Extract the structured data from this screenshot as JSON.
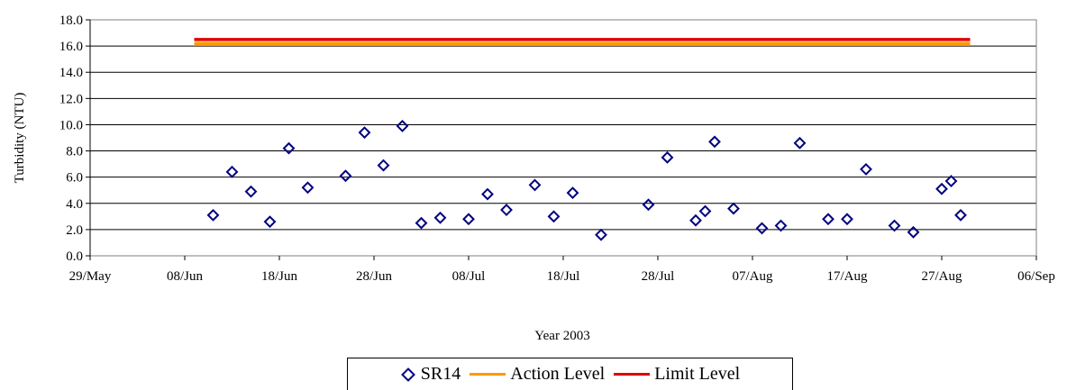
{
  "chart_data": {
    "type": "scatter",
    "xlabel": "Year 2003",
    "ylabel": "Turbidity (NTU)",
    "ylim": [
      0,
      18
    ],
    "y_ticks": [
      "0.0",
      "2.0",
      "4.0",
      "6.0",
      "8.0",
      "10.0",
      "12.0",
      "14.0",
      "16.0",
      "18.0"
    ],
    "x_range_days": [
      0,
      100
    ],
    "x_tick_labels": [
      "29/May",
      "08/Jun",
      "18/Jun",
      "28/Jun",
      "08/Jul",
      "18/Jul",
      "28/Jul",
      "07/Aug",
      "17/Aug",
      "27/Aug",
      "06/Sep"
    ],
    "grid": true,
    "legend_position": "bottom",
    "series": [
      {
        "name": "SR14",
        "kind": "points",
        "color": "#000080",
        "points": [
          {
            "x": "11/Jun",
            "y": 3.1
          },
          {
            "x": "13/Jun",
            "y": 6.4
          },
          {
            "x": "15/Jun",
            "y": 4.9
          },
          {
            "x": "17/Jun",
            "y": 2.6
          },
          {
            "x": "19/Jun",
            "y": 8.2
          },
          {
            "x": "21/Jun",
            "y": 5.2
          },
          {
            "x": "25/Jun",
            "y": 6.1
          },
          {
            "x": "27/Jun",
            "y": 9.4
          },
          {
            "x": "29/Jun",
            "y": 6.9
          },
          {
            "x": "01/Jul",
            "y": 9.9
          },
          {
            "x": "03/Jul",
            "y": 2.5
          },
          {
            "x": "05/Jul",
            "y": 2.9
          },
          {
            "x": "08/Jul",
            "y": 2.8
          },
          {
            "x": "10/Jul",
            "y": 4.7
          },
          {
            "x": "12/Jul",
            "y": 3.5
          },
          {
            "x": "15/Jul",
            "y": 5.4
          },
          {
            "x": "17/Jul",
            "y": 3.0
          },
          {
            "x": "19/Jul",
            "y": 4.8
          },
          {
            "x": "22/Jul",
            "y": 1.6
          },
          {
            "x": "27/Jul",
            "y": 3.9
          },
          {
            "x": "29/Jul",
            "y": 7.5
          },
          {
            "x": "01/Aug",
            "y": 2.7
          },
          {
            "x": "02/Aug",
            "y": 3.4
          },
          {
            "x": "03/Aug",
            "y": 8.7
          },
          {
            "x": "05/Aug",
            "y": 3.6
          },
          {
            "x": "08/Aug",
            "y": 2.1
          },
          {
            "x": "10/Aug",
            "y": 2.3
          },
          {
            "x": "12/Aug",
            "y": 8.6
          },
          {
            "x": "15/Aug",
            "y": 2.8
          },
          {
            "x": "17/Aug",
            "y": 2.8
          },
          {
            "x": "19/Aug",
            "y": 6.6
          },
          {
            "x": "22/Aug",
            "y": 2.3
          },
          {
            "x": "24/Aug",
            "y": 1.8
          },
          {
            "x": "27/Aug",
            "y": 5.1
          },
          {
            "x": "28/Aug",
            "y": 5.7
          },
          {
            "x": "29/Aug",
            "y": 3.1
          }
        ]
      },
      {
        "name": "Action Level",
        "kind": "line",
        "color": "#FF9900",
        "points": [
          {
            "x": "09/Jun",
            "y": 16.2
          },
          {
            "x": "30/Aug",
            "y": 16.2
          }
        ]
      },
      {
        "name": "Limit Level",
        "kind": "line",
        "color": "#E00000",
        "points": [
          {
            "x": "09/Jun",
            "y": 16.5
          },
          {
            "x": "30/Aug",
            "y": 16.5
          }
        ]
      }
    ]
  }
}
